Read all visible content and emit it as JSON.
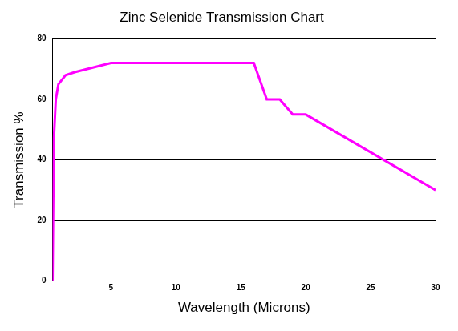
{
  "chart_data": {
    "type": "line",
    "title": "Zinc Selenide Transmission Chart",
    "x_label": "Wavelength (Microns)",
    "y_label": "Transmission %",
    "x": [
      0.5,
      0.6,
      0.75,
      0.95,
      1.5,
      2.2,
      5,
      16,
      17,
      18,
      19,
      20,
      30
    ],
    "values": [
      0,
      47,
      60,
      65,
      68,
      69,
      72,
      72,
      60,
      60,
      55,
      55,
      30
    ],
    "color": "#ff00ff",
    "xlim": [
      0.5,
      30
    ],
    "ylim": [
      0,
      80
    ],
    "xticks": [
      5,
      10,
      15,
      20,
      25,
      30
    ],
    "yticks": [
      0,
      20,
      40,
      60,
      80
    ],
    "grid": true
  }
}
